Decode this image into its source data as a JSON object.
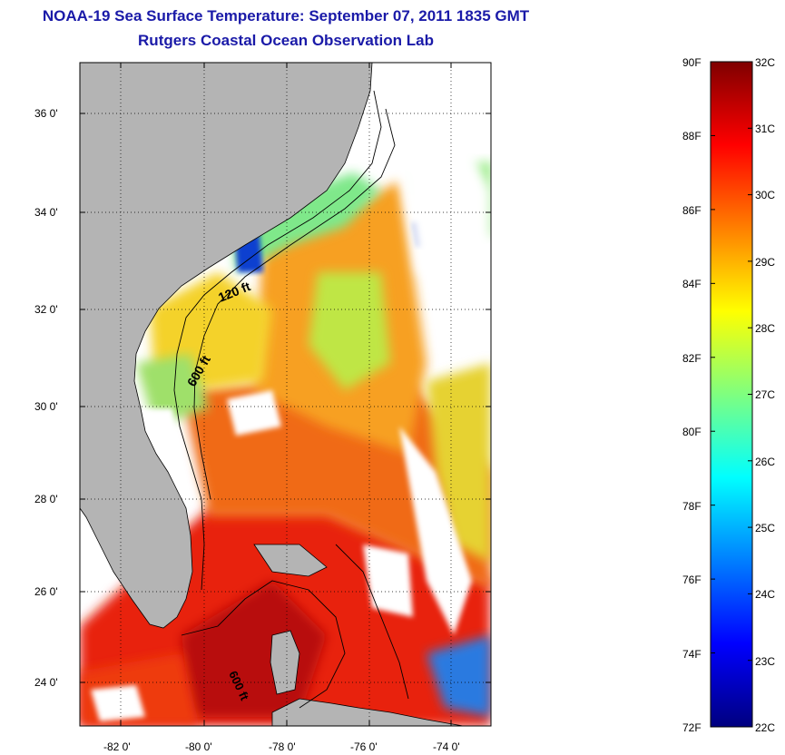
{
  "title": {
    "line1": "NOAA-19 Sea Surface Temperature:  September 07, 2011 1835 GMT",
    "line2": "Rutgers Coastal Ocean Observation Lab"
  },
  "map": {
    "lat_ticks": [
      "36 0'",
      "34 0'",
      "32 0'",
      "30 0'",
      "28 0'",
      "26 0'",
      "24 0'"
    ],
    "lon_ticks": [
      "-82 0'",
      "-80 0'",
      "-78 0'",
      "-76 0'",
      "-74 0'"
    ],
    "contour_labels": [
      "120 ft",
      "600 ft",
      "600 ft"
    ],
    "land_color": "#b4b4b4",
    "grid": true
  },
  "colorbar": {
    "fahrenheit": [
      "90F",
      "88F",
      "86F",
      "84F",
      "82F",
      "80F",
      "78F",
      "76F",
      "74F",
      "72F"
    ],
    "celsius": [
      "32C",
      "31C",
      "30C",
      "29C",
      "28C",
      "27C",
      "26C",
      "25C",
      "24C",
      "23C",
      "22C"
    ],
    "colors": [
      "#00007f",
      "#0000ff",
      "#007fff",
      "#00ffff",
      "#7fff7f",
      "#ffff00",
      "#ff7f00",
      "#ff0000",
      "#7f0000"
    ]
  }
}
